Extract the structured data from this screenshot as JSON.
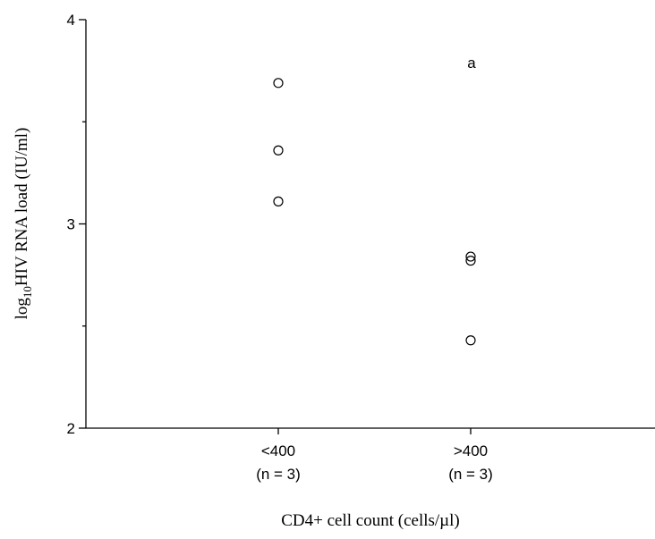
{
  "chart_data": {
    "type": "scatter",
    "y_label": {
      "prefix": "log",
      "subscript": "10",
      "text": "HIV RNA load (IU/ml)"
    },
    "x_label": "CD4+ cell count (cells/µl)",
    "annotation": "a",
    "categories": [
      "<400",
      ">400"
    ],
    "category_notes": [
      "(n = 3)",
      "(n = 3)"
    ],
    "values": [
      [
        3.69,
        3.36,
        3.11
      ],
      [
        2.84,
        2.82,
        2.43
      ]
    ],
    "color": "#000000",
    "ylim": [
      2,
      4
    ],
    "yticks": [
      2,
      3,
      4
    ],
    "yminorticks": [
      2.5,
      3.5
    ]
  }
}
